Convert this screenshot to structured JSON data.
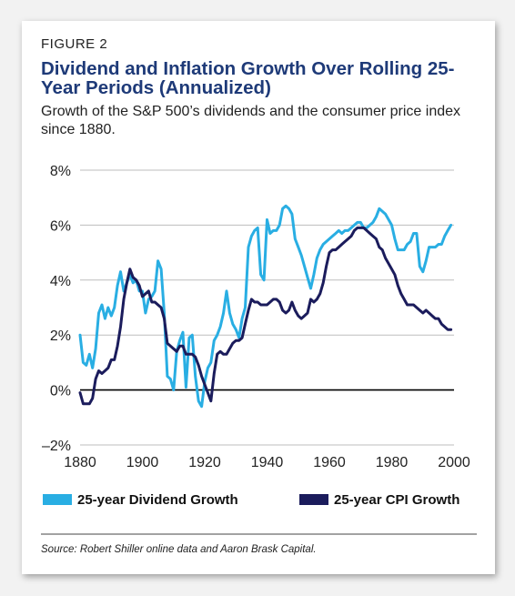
{
  "figure_label": "FIGURE 2",
  "title": "Dividend and Inflation Growth Over Rolling 25-Year Periods (Annualized)",
  "subtitle": "Growth of the S&P 500’s dividends and the consumer price index since 1880.",
  "source": "Source: Robert Shiller online data and Aaron Brask Capital.",
  "colors": {
    "dividend": "#29aee3",
    "cpi": "#1b1c5c",
    "title": "#1e3a78",
    "zero_line": "#000000"
  },
  "chart_data": {
    "type": "line",
    "title": "Dividend and Inflation Growth Over Rolling 25-Year Periods (Annualized)",
    "xlabel": "",
    "ylabel": "",
    "xlim": [
      1880,
      2000
    ],
    "ylim": [
      -2,
      8
    ],
    "x_ticks": [
      1880,
      1900,
      1920,
      1940,
      1960,
      1980,
      2000
    ],
    "y_ticks": [
      -2,
      0,
      2,
      4,
      6,
      8
    ],
    "y_tick_labels": [
      "–2%",
      "0%",
      "2%",
      "4%",
      "6%",
      "8%"
    ],
    "grid": "horizontal",
    "legend_position": "bottom",
    "series": [
      {
        "name": "25-year Dividend Growth",
        "color": "#29aee3",
        "points": [
          [
            1880,
            2.0
          ],
          [
            1881,
            1.0
          ],
          [
            1882,
            0.9
          ],
          [
            1883,
            1.3
          ],
          [
            1884,
            0.8
          ],
          [
            1885,
            1.5
          ],
          [
            1886,
            2.8
          ],
          [
            1887,
            3.1
          ],
          [
            1888,
            2.6
          ],
          [
            1889,
            3.0
          ],
          [
            1890,
            2.7
          ],
          [
            1891,
            3.0
          ],
          [
            1892,
            3.8
          ],
          [
            1893,
            4.3
          ],
          [
            1894,
            3.6
          ],
          [
            1895,
            3.9
          ],
          [
            1896,
            4.2
          ],
          [
            1897,
            3.9
          ],
          [
            1898,
            4.0
          ],
          [
            1899,
            3.6
          ],
          [
            1900,
            3.6
          ],
          [
            1901,
            2.8
          ],
          [
            1902,
            3.3
          ],
          [
            1903,
            3.4
          ],
          [
            1904,
            3.6
          ],
          [
            1905,
            4.7
          ],
          [
            1906,
            4.4
          ],
          [
            1907,
            2.8
          ],
          [
            1908,
            0.5
          ],
          [
            1909,
            0.4
          ],
          [
            1910,
            0.0
          ],
          [
            1911,
            1.4
          ],
          [
            1912,
            1.8
          ],
          [
            1913,
            2.1
          ],
          [
            1914,
            0.1
          ],
          [
            1915,
            1.9
          ],
          [
            1916,
            2.0
          ],
          [
            1917,
            0.5
          ],
          [
            1918,
            -0.4
          ],
          [
            1919,
            -0.6
          ],
          [
            1920,
            0.3
          ],
          [
            1921,
            0.8
          ],
          [
            1922,
            1.0
          ],
          [
            1923,
            1.8
          ],
          [
            1924,
            2.0
          ],
          [
            1925,
            2.3
          ],
          [
            1926,
            2.8
          ],
          [
            1927,
            3.6
          ],
          [
            1928,
            2.8
          ],
          [
            1929,
            2.4
          ],
          [
            1930,
            2.2
          ],
          [
            1931,
            1.9
          ],
          [
            1932,
            2.6
          ],
          [
            1933,
            3.0
          ],
          [
            1934,
            5.2
          ],
          [
            1935,
            5.6
          ],
          [
            1936,
            5.8
          ],
          [
            1937,
            5.9
          ],
          [
            1938,
            4.2
          ],
          [
            1939,
            4.0
          ],
          [
            1940,
            6.2
          ],
          [
            1941,
            5.7
          ],
          [
            1942,
            5.8
          ],
          [
            1943,
            5.8
          ],
          [
            1944,
            6.0
          ],
          [
            1945,
            6.6
          ],
          [
            1946,
            6.7
          ],
          [
            1947,
            6.6
          ],
          [
            1948,
            6.4
          ],
          [
            1949,
            5.5
          ],
          [
            1950,
            5.2
          ],
          [
            1951,
            4.9
          ],
          [
            1952,
            4.5
          ],
          [
            1953,
            4.1
          ],
          [
            1954,
            3.7
          ],
          [
            1955,
            4.2
          ],
          [
            1956,
            4.8
          ],
          [
            1957,
            5.1
          ],
          [
            1958,
            5.3
          ],
          [
            1959,
            5.4
          ],
          [
            1960,
            5.5
          ],
          [
            1961,
            5.6
          ],
          [
            1962,
            5.7
          ],
          [
            1963,
            5.8
          ],
          [
            1964,
            5.7
          ],
          [
            1965,
            5.8
          ],
          [
            1966,
            5.8
          ],
          [
            1967,
            5.9
          ],
          [
            1968,
            6.0
          ],
          [
            1969,
            6.1
          ],
          [
            1970,
            6.1
          ],
          [
            1971,
            5.9
          ],
          [
            1972,
            5.9
          ],
          [
            1973,
            6.0
          ],
          [
            1974,
            6.1
          ],
          [
            1975,
            6.3
          ],
          [
            1976,
            6.6
          ],
          [
            1977,
            6.5
          ],
          [
            1978,
            6.4
          ],
          [
            1979,
            6.2
          ],
          [
            1980,
            6.0
          ],
          [
            1981,
            5.5
          ],
          [
            1982,
            5.1
          ],
          [
            1983,
            5.1
          ],
          [
            1984,
            5.1
          ],
          [
            1985,
            5.3
          ],
          [
            1986,
            5.4
          ],
          [
            1987,
            5.7
          ],
          [
            1988,
            5.7
          ],
          [
            1989,
            4.5
          ],
          [
            1990,
            4.3
          ],
          [
            1991,
            4.7
          ],
          [
            1992,
            5.2
          ],
          [
            1993,
            5.2
          ],
          [
            1994,
            5.2
          ],
          [
            1995,
            5.3
          ],
          [
            1996,
            5.3
          ],
          [
            1997,
            5.6
          ],
          [
            1998,
            5.8
          ],
          [
            1999,
            6.0
          ]
        ]
      },
      {
        "name": "25-year CPI Growth",
        "color": "#1b1c5c",
        "points": [
          [
            1880,
            -0.1
          ],
          [
            1881,
            -0.5
          ],
          [
            1882,
            -0.5
          ],
          [
            1883,
            -0.5
          ],
          [
            1884,
            -0.3
          ],
          [
            1885,
            0.4
          ],
          [
            1886,
            0.7
          ],
          [
            1887,
            0.6
          ],
          [
            1888,
            0.7
          ],
          [
            1889,
            0.8
          ],
          [
            1890,
            1.1
          ],
          [
            1891,
            1.1
          ],
          [
            1892,
            1.6
          ],
          [
            1893,
            2.3
          ],
          [
            1894,
            3.3
          ],
          [
            1895,
            3.9
          ],
          [
            1896,
            4.4
          ],
          [
            1897,
            4.1
          ],
          [
            1898,
            4.0
          ],
          [
            1899,
            3.8
          ],
          [
            1900,
            3.4
          ],
          [
            1901,
            3.5
          ],
          [
            1902,
            3.6
          ],
          [
            1903,
            3.2
          ],
          [
            1904,
            3.2
          ],
          [
            1905,
            3.1
          ],
          [
            1906,
            3.0
          ],
          [
            1907,
            2.6
          ],
          [
            1908,
            1.7
          ],
          [
            1909,
            1.6
          ],
          [
            1910,
            1.5
          ],
          [
            1911,
            1.4
          ],
          [
            1912,
            1.6
          ],
          [
            1913,
            1.6
          ],
          [
            1914,
            1.3
          ],
          [
            1915,
            1.3
          ],
          [
            1916,
            1.3
          ],
          [
            1917,
            1.2
          ],
          [
            1918,
            0.9
          ],
          [
            1919,
            0.5
          ],
          [
            1920,
            0.2
          ],
          [
            1921,
            -0.1
          ],
          [
            1922,
            -0.4
          ],
          [
            1923,
            0.6
          ],
          [
            1924,
            1.3
          ],
          [
            1925,
            1.4
          ],
          [
            1926,
            1.3
          ],
          [
            1927,
            1.3
          ],
          [
            1928,
            1.5
          ],
          [
            1929,
            1.7
          ],
          [
            1930,
            1.8
          ],
          [
            1931,
            1.8
          ],
          [
            1932,
            1.9
          ],
          [
            1933,
            2.4
          ],
          [
            1934,
            2.9
          ],
          [
            1935,
            3.3
          ],
          [
            1936,
            3.2
          ],
          [
            1937,
            3.2
          ],
          [
            1938,
            3.1
          ],
          [
            1939,
            3.1
          ],
          [
            1940,
            3.1
          ],
          [
            1941,
            3.2
          ],
          [
            1942,
            3.3
          ],
          [
            1943,
            3.3
          ],
          [
            1944,
            3.2
          ],
          [
            1945,
            2.9
          ],
          [
            1946,
            2.8
          ],
          [
            1947,
            2.9
          ],
          [
            1948,
            3.2
          ],
          [
            1949,
            2.9
          ],
          [
            1950,
            2.7
          ],
          [
            1951,
            2.6
          ],
          [
            1952,
            2.7
          ],
          [
            1953,
            2.8
          ],
          [
            1954,
            3.3
          ],
          [
            1955,
            3.2
          ],
          [
            1956,
            3.3
          ],
          [
            1957,
            3.5
          ],
          [
            1958,
            3.9
          ],
          [
            1959,
            4.5
          ],
          [
            1960,
            5.0
          ],
          [
            1961,
            5.1
          ],
          [
            1962,
            5.1
          ],
          [
            1963,
            5.2
          ],
          [
            1964,
            5.3
          ],
          [
            1965,
            5.4
          ],
          [
            1966,
            5.5
          ],
          [
            1967,
            5.6
          ],
          [
            1968,
            5.8
          ],
          [
            1969,
            5.9
          ],
          [
            1970,
            5.9
          ],
          [
            1971,
            5.9
          ],
          [
            1972,
            5.8
          ],
          [
            1973,
            5.7
          ],
          [
            1974,
            5.6
          ],
          [
            1975,
            5.5
          ],
          [
            1976,
            5.2
          ],
          [
            1977,
            5.1
          ],
          [
            1978,
            4.8
          ],
          [
            1979,
            4.6
          ],
          [
            1980,
            4.4
          ],
          [
            1981,
            4.2
          ],
          [
            1982,
            3.8
          ],
          [
            1983,
            3.5
          ],
          [
            1984,
            3.3
          ],
          [
            1985,
            3.1
          ],
          [
            1986,
            3.1
          ],
          [
            1987,
            3.1
          ],
          [
            1988,
            3.0
          ],
          [
            1989,
            2.9
          ],
          [
            1990,
            2.8
          ],
          [
            1991,
            2.9
          ],
          [
            1992,
            2.8
          ],
          [
            1993,
            2.7
          ],
          [
            1994,
            2.6
          ],
          [
            1995,
            2.6
          ],
          [
            1996,
            2.4
          ],
          [
            1997,
            2.3
          ],
          [
            1998,
            2.2
          ],
          [
            1999,
            2.2
          ]
        ]
      }
    ]
  }
}
